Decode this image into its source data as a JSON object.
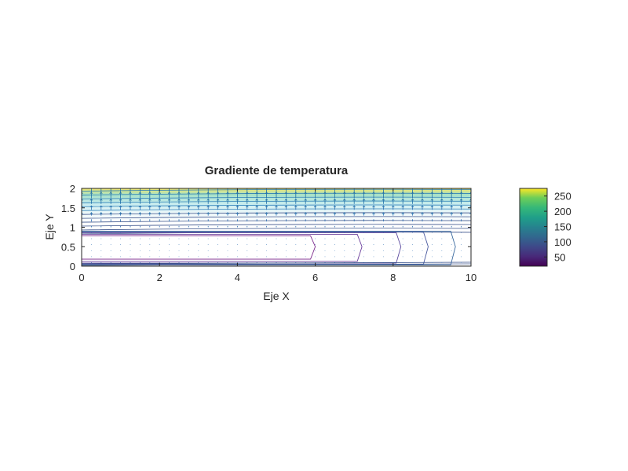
{
  "chart_data": {
    "type": "heatmap",
    "title": "Gradiente de temperatura",
    "xlabel": "Eje X",
    "ylabel": "Eje Y",
    "xlim": [
      0,
      10
    ],
    "ylim": [
      0,
      2
    ],
    "x_ticks": [
      "0",
      "2",
      "4",
      "6",
      "8",
      "10"
    ],
    "y_ticks": [
      "0",
      "0.5",
      "1",
      "1.5",
      "2"
    ],
    "colorbar": {
      "colormap": "viridis",
      "range": [
        20,
        275
      ],
      "ticks": [
        "50",
        "100",
        "150",
        "200",
        "250"
      ],
      "tick_values": [
        50,
        100,
        150,
        200,
        250
      ]
    },
    "field": {
      "description_of_values": "Temperature increasing with Y; low region near y=0.5; quiver arrows of the gradient over contour lines",
      "rows_y": [
        0,
        0.25,
        0.5,
        0.75,
        1.0,
        1.25,
        1.5,
        1.75,
        2.0
      ],
      "row_values": [
        35,
        25,
        20,
        28,
        45,
        75,
        120,
        180,
        260
      ]
    },
    "grid": false,
    "legend": "none",
    "colors": {
      "contour": "#3b528b",
      "arrows": "#2c6fb3",
      "axis": "#262626",
      "background": "#ffffff"
    }
  }
}
